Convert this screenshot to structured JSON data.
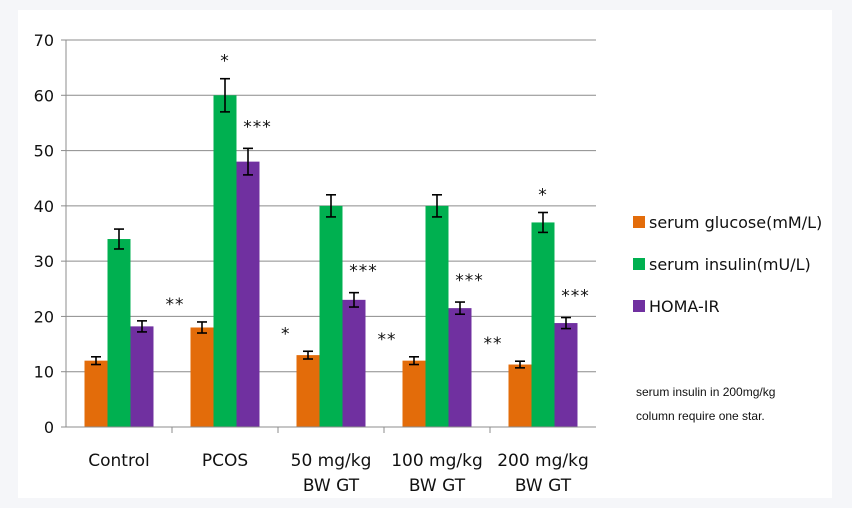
{
  "chart_data": {
    "type": "bar",
    "categories": [
      [
        "Control"
      ],
      [
        "PCOS"
      ],
      [
        "50 mg/kg",
        "BW GT"
      ],
      [
        "100 mg/kg",
        "BW GT"
      ],
      [
        "200 mg/kg",
        "BW GT"
      ]
    ],
    "ylim": [
      0,
      70
    ],
    "yticks": [
      0,
      10,
      20,
      30,
      40,
      50,
      60,
      70
    ],
    "grid": true,
    "legend_position": "right",
    "series": [
      {
        "name": "serum glucose(mM/L)",
        "color": "#e36c0a",
        "values": [
          12,
          18,
          13,
          12,
          11.3
        ],
        "errors": [
          0.7,
          1.0,
          0.7,
          0.7,
          0.6
        ],
        "annotations": [
          "",
          "**",
          "*",
          "**",
          "**"
        ]
      },
      {
        "name": "serum insulin(mU/L)",
        "color": "#00b050",
        "values": [
          34,
          60,
          40,
          40,
          37
        ],
        "errors": [
          1.8,
          3.0,
          2.0,
          2.0,
          1.8
        ],
        "annotations": [
          "",
          "*",
          "",
          "",
          "*"
        ]
      },
      {
        "name": "HOMA-IR",
        "color": "#7030a0",
        "values": [
          18.2,
          48,
          23,
          21.5,
          18.8
        ],
        "errors": [
          1.0,
          2.4,
          1.3,
          1.1,
          1.0
        ],
        "annotations": [
          "",
          "***",
          "***",
          "***",
          "***"
        ]
      }
    ],
    "note": [
      "serum insulin in 200mg/kg",
      "column require one star."
    ]
  }
}
